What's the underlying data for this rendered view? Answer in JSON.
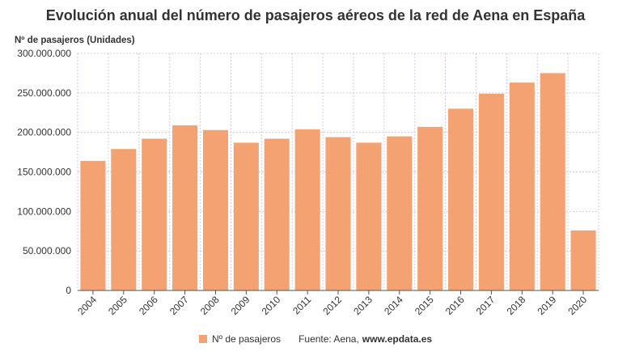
{
  "chart_data": {
    "type": "bar",
    "title": "Evolución anual del número de pasajeros aéreos de la red de Aena en España",
    "ylabel": "Nº de pasajeros (Unidades)",
    "xlabel": "",
    "categories": [
      "2004",
      "2005",
      "2006",
      "2007",
      "2008",
      "2009",
      "2010",
      "2011",
      "2012",
      "2013",
      "2014",
      "2015",
      "2016",
      "2017",
      "2018",
      "2019",
      "2020"
    ],
    "series": [
      {
        "name": "Nº de pasajeros",
        "values": [
          164000000,
          179000000,
          192000000,
          209000000,
          203000000,
          187000000,
          192000000,
          204000000,
          194000000,
          187000000,
          195000000,
          207000000,
          230000000,
          249000000,
          263000000,
          275000000,
          76000000
        ]
      }
    ],
    "ylim": [
      0,
      300000000
    ],
    "yticks": [
      0,
      50000000,
      100000000,
      150000000,
      200000000,
      250000000,
      300000000
    ],
    "ytick_labels": [
      "0",
      "50.000.000",
      "100.000.000",
      "150.000.000",
      "200.000.000",
      "250.000.000",
      "300.000.000"
    ],
    "grid": true,
    "legend_position": "bottom"
  },
  "colors": {
    "bar": "#f4a271",
    "grid": "#d7c8e6",
    "axis": "#555555"
  },
  "source": {
    "prefix": "Fuente: Aena,",
    "site": "www.epdata.es"
  }
}
